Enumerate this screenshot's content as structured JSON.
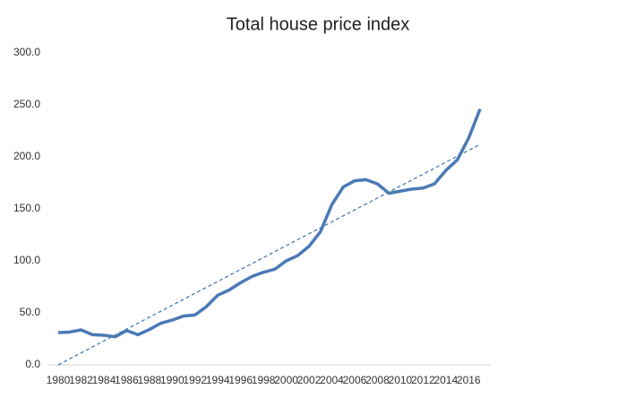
{
  "chart_data": {
    "type": "line",
    "title": "Total house price index",
    "categories": [
      "1980",
      null,
      "1982",
      null,
      "1984",
      null,
      "1986",
      null,
      "1988",
      null,
      "1990",
      null,
      "1992",
      null,
      "1994",
      null,
      "1996",
      null,
      "1998",
      null,
      "2000",
      null,
      "2002",
      null,
      "2004",
      null,
      "2006",
      null,
      "2008",
      null,
      "2010",
      null,
      "2012",
      null,
      "2014",
      null,
      "2016",
      null
    ],
    "series": [
      {
        "color": "#4a7ab5",
        "values": [
          31,
          31.5,
          33.6,
          29,
          28.5,
          27,
          33,
          29,
          34,
          40,
          43,
          47,
          48,
          56,
          67,
          72,
          79,
          85,
          89,
          92,
          100,
          105,
          114,
          128,
          154,
          171,
          177,
          178,
          174,
          165,
          167,
          169,
          170,
          174,
          187,
          197,
          218,
          246
        ]
      },
      {
        "color": "#4a7ab5",
        "dashed": true,
        "values": [
          0,
          5.7,
          11.5,
          17.2,
          22.9,
          28.7,
          34.4,
          40.1,
          45.8,
          51.6,
          57.3,
          63.0,
          68.8,
          74.5,
          80.2,
          85.9,
          91.7,
          97.4,
          103.1,
          108.9,
          114.6,
          120.3,
          126.1,
          131.8,
          137.5,
          143.3,
          149.0,
          154.7,
          160.4,
          166.2,
          171.9,
          177.6,
          183.4,
          189.1,
          194.8,
          200.6,
          206.3,
          212.0
        ]
      }
    ],
    "ylim": [
      0,
      300
    ],
    "yticks": [
      {
        "value": 0,
        "label": "0.0"
      },
      {
        "value": 50,
        "label": "50.0"
      },
      {
        "value": 100,
        "label": "100.0"
      },
      {
        "value": 150,
        "label": "150.0"
      },
      {
        "value": 200,
        "label": "200.0"
      },
      {
        "value": 250,
        "label": "250.0"
      },
      {
        "value": 300,
        "label": "300.0"
      }
    ],
    "grid": false
  }
}
